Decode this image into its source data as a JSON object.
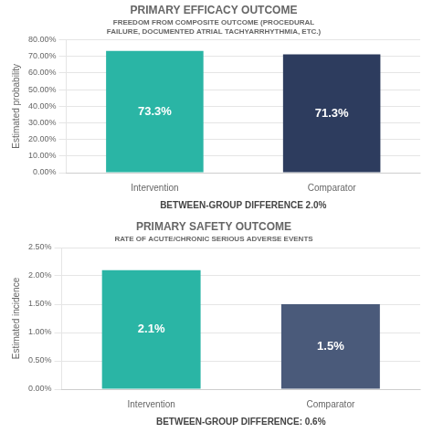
{
  "chart_data": [
    {
      "type": "bar",
      "title": "PRIMARY EFFICACY OUTCOME",
      "subtitle": [
        "FREEDOM FROM COMPOSITE OUTCOME (PROCEDURAL",
        "FAILURE, DOCUMENTED ATRIAL TACHYARRHYTHMIA, ETC.)"
      ],
      "categories": [
        "Intervention",
        "Comparator"
      ],
      "values": [
        73.3,
        71.3
      ],
      "value_labels": [
        "73.3%",
        "71.3%"
      ],
      "data_labels": true,
      "colors": [
        "#2ab5a5",
        "#2d3c5e"
      ],
      "ylabel": "Estimated probability",
      "annotations": [
        "BETWEEN-GROUP DIFFERENCE 2.0%"
      ],
      "ylim": [
        0,
        80
      ],
      "yticks": [
        {
          "value": 0,
          "label": "0.00%"
        },
        {
          "value": 10,
          "label": "10.00%"
        },
        {
          "value": 20,
          "label": "20.00%"
        },
        {
          "value": 30,
          "label": "30.00%"
        },
        {
          "value": 40,
          "label": "40.00%"
        },
        {
          "value": 50,
          "label": "50.00%"
        },
        {
          "value": 60,
          "label": "60.00%"
        },
        {
          "value": 70,
          "label": "70.00%"
        },
        {
          "value": 80,
          "label": "80.00%"
        }
      ],
      "grid": true
    },
    {
      "type": "bar",
      "title": "PRIMARY SAFETY OUTCOME",
      "subtitle": [
        "RATE OF ACUTE/CHRONIC SERIOUS ADVERSE EVENTS"
      ],
      "categories": [
        "Intervention",
        "Comparator"
      ],
      "values": [
        2.1,
        1.5
      ],
      "value_labels": [
        "2.1%",
        "1.5%"
      ],
      "data_labels": true,
      "colors": [
        "#2ab5a5",
        "#4a5a7a"
      ],
      "ylabel": "Estimated incidence",
      "annotations": [
        "BETWEEN-GROUP DIFFERENCE: 0.6%"
      ],
      "ylim": [
        0,
        2.5
      ],
      "yticks": [
        {
          "value": 0,
          "label": "0.00%"
        },
        {
          "value": 0.5,
          "label": "0.50%"
        },
        {
          "value": 1.0,
          "label": "1.00%"
        },
        {
          "value": 1.5,
          "label": "1.50%"
        },
        {
          "value": 2.0,
          "label": "2.00%"
        },
        {
          "value": 2.5,
          "label": "2.50%"
        }
      ],
      "grid": true
    }
  ]
}
